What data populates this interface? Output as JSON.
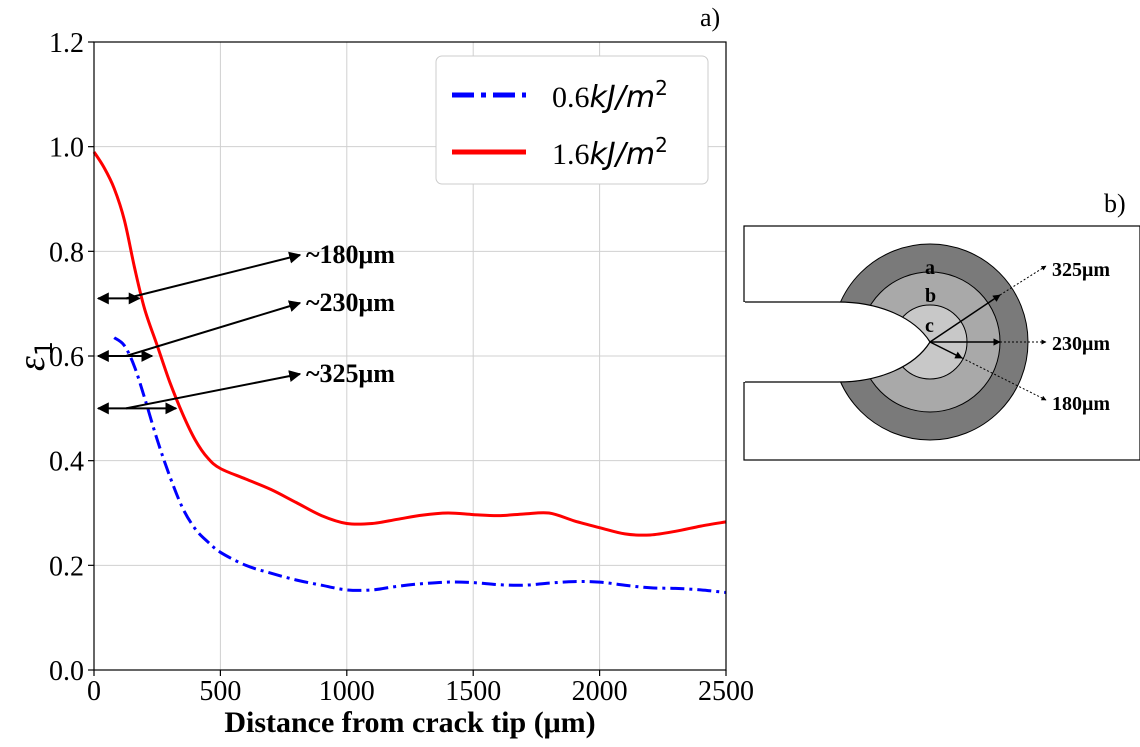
{
  "chart_data": [
    {
      "panel_label": "a)",
      "type": "line",
      "xlabel": "Distance from crack tip (μm)",
      "ylabel_symbol": "ε",
      "ylabel_subscript": "1",
      "xlim": [
        0,
        2500
      ],
      "ylim": [
        0.0,
        1.2
      ],
      "xticks": [
        0,
        500,
        1000,
        1500,
        2000,
        2500
      ],
      "yticks": [
        0.0,
        0.2,
        0.4,
        0.6,
        0.8,
        1.0,
        1.2
      ],
      "ytick_labels": [
        "0.0",
        "0.2",
        "0.4",
        "0.6",
        "0.8",
        "1.0",
        "1.2"
      ],
      "grid": true,
      "legend_position": "top-right",
      "series": [
        {
          "name_value": "0.6",
          "name_unit": "kJ/m",
          "name_exp": "2",
          "color": "#0000ff",
          "style": "dashdot",
          "x": [
            80,
            120,
            160,
            200,
            250,
            300,
            350,
            400,
            450,
            500,
            600,
            700,
            800,
            900,
            1000,
            1100,
            1200,
            1300,
            1400,
            1500,
            1600,
            1700,
            1800,
            1900,
            2000,
            2100,
            2200,
            2300,
            2400,
            2500
          ],
          "y": [
            0.635,
            0.62,
            0.58,
            0.52,
            0.44,
            0.37,
            0.31,
            0.27,
            0.245,
            0.225,
            0.2,
            0.185,
            0.172,
            0.162,
            0.153,
            0.153,
            0.16,
            0.165,
            0.168,
            0.167,
            0.163,
            0.162,
            0.166,
            0.169,
            0.168,
            0.162,
            0.157,
            0.156,
            0.153,
            0.148
          ]
        },
        {
          "name_value": "1.6",
          "name_unit": "kJ/m",
          "name_exp": "2",
          "color": "#ff0000",
          "style": "solid",
          "x": [
            0,
            40,
            80,
            120,
            160,
            200,
            250,
            300,
            350,
            400,
            450,
            500,
            600,
            700,
            800,
            900,
            1000,
            1100,
            1200,
            1300,
            1400,
            1500,
            1600,
            1700,
            1800,
            1900,
            2000,
            2100,
            2200,
            2300,
            2400,
            2500
          ],
          "y": [
            0.99,
            0.96,
            0.92,
            0.86,
            0.77,
            0.69,
            0.62,
            0.55,
            0.49,
            0.44,
            0.405,
            0.385,
            0.365,
            0.345,
            0.32,
            0.295,
            0.28,
            0.28,
            0.288,
            0.296,
            0.3,
            0.297,
            0.295,
            0.298,
            0.3,
            0.285,
            0.272,
            0.26,
            0.258,
            0.265,
            0.275,
            0.283
          ]
        }
      ],
      "annotations": [
        {
          "text": "~180μm",
          "y": 0.71,
          "x_start": 0,
          "x_end": 180
        },
        {
          "text": "~230μm",
          "y": 0.6,
          "x_start": 0,
          "x_end": 230
        },
        {
          "text": "~325μm",
          "y": 0.5,
          "x_start": 0,
          "x_end": 325
        }
      ]
    }
  ],
  "schematic": {
    "panel_label": "b)",
    "zone_labels": [
      "a",
      "b",
      "c"
    ],
    "radius_labels": [
      "325μm",
      "230μm",
      "180μm"
    ],
    "colors": {
      "zone_a": "#7a7a7a",
      "zone_b": "#a9a9a9",
      "zone_c": "#c8c8c8"
    }
  }
}
